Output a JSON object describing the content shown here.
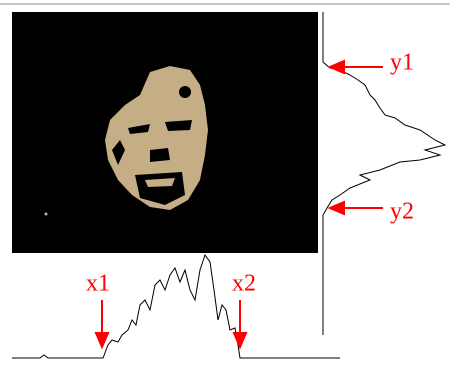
{
  "annotations": [
    {
      "label": "x1"
    },
    {
      "label": "x2"
    },
    {
      "label": "y1"
    },
    {
      "label": "y2"
    }
  ]
}
